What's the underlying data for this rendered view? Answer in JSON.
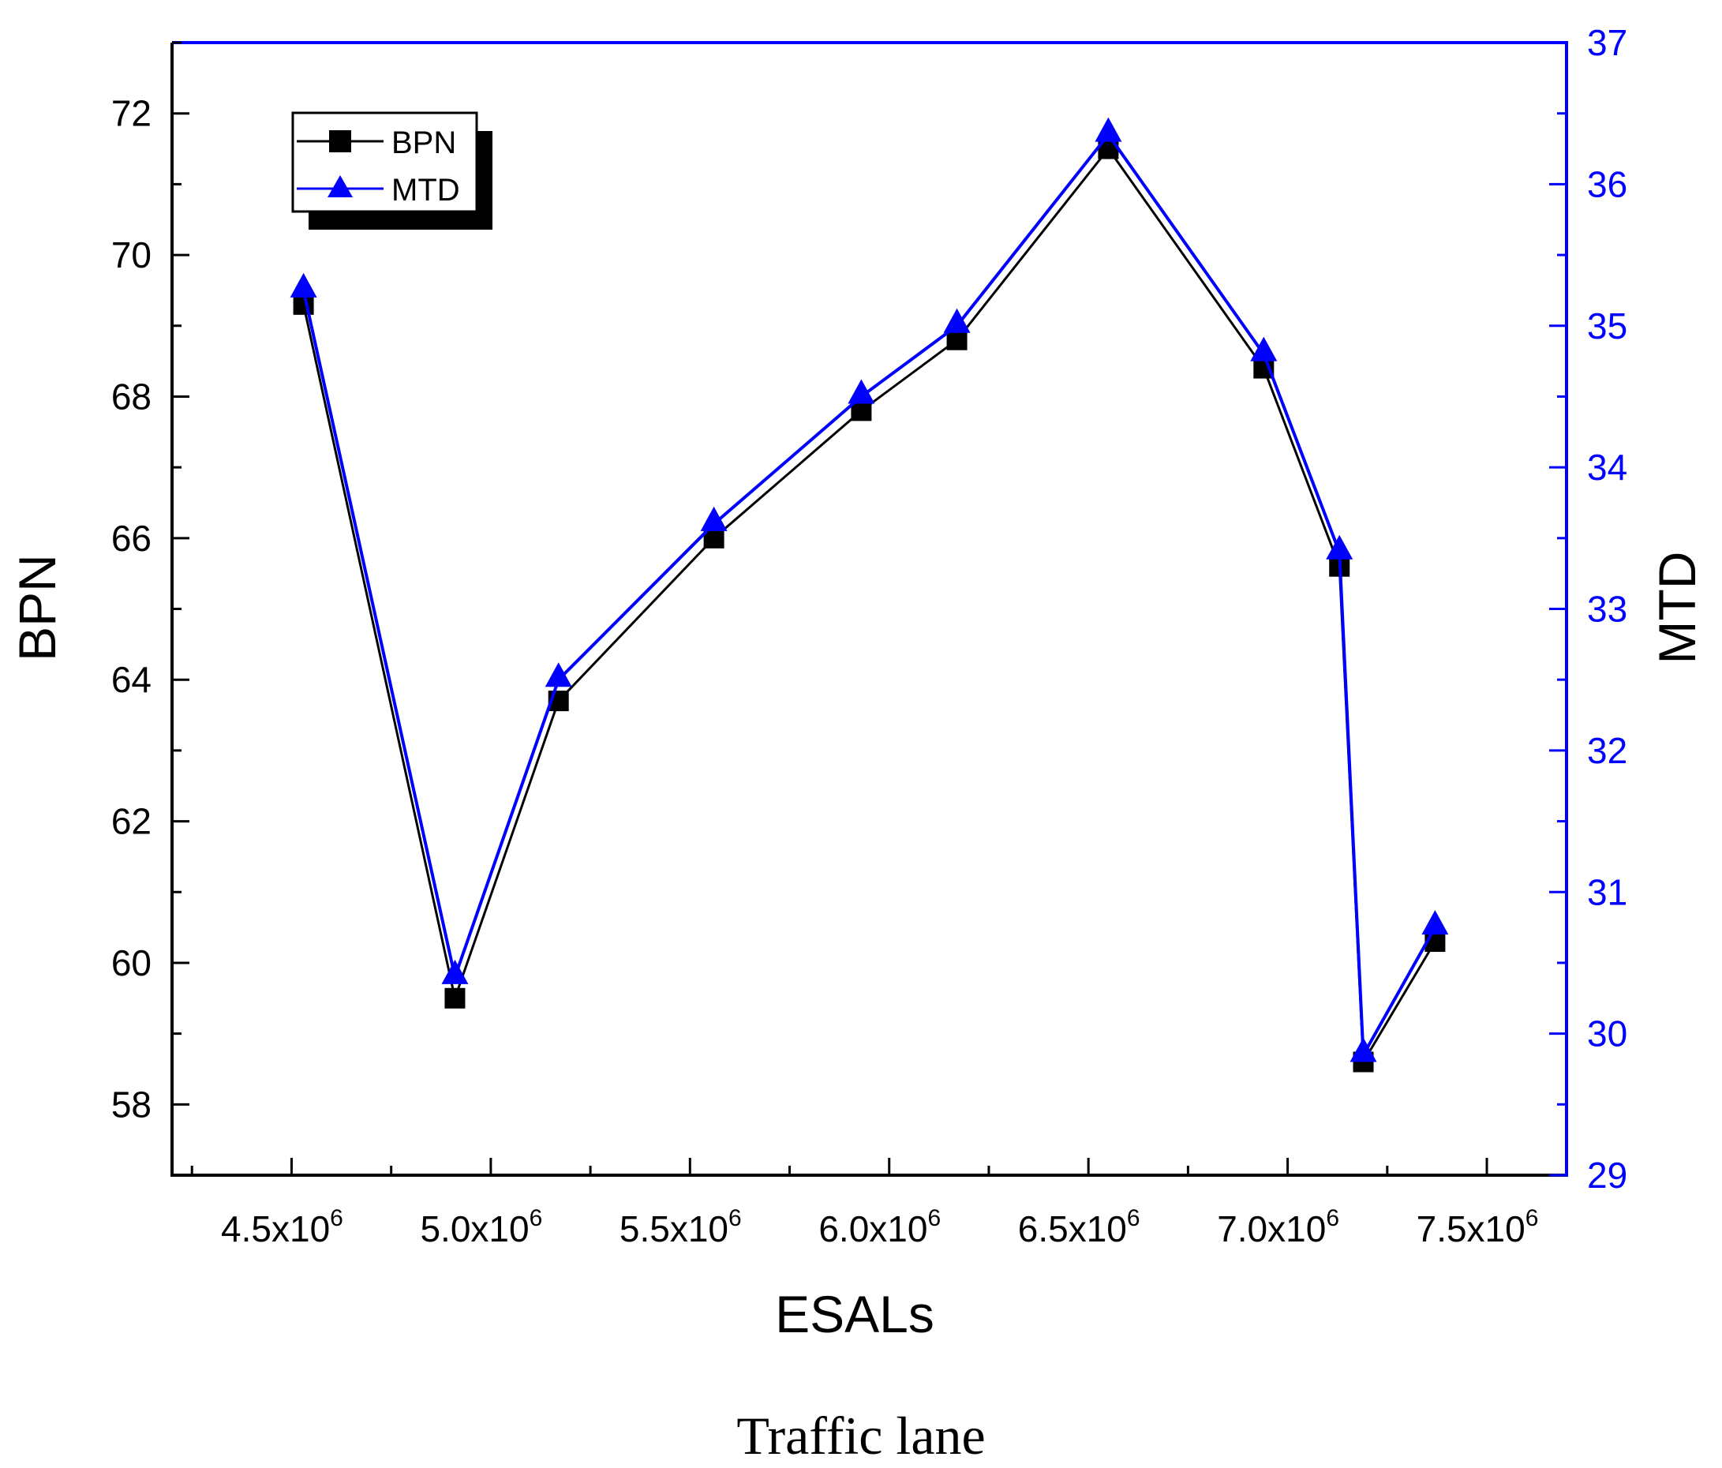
{
  "caption": "Traffic lane",
  "colors": {
    "left_axis": "#000000",
    "right_axis": "#0000ff",
    "bpn_series": "#000000",
    "mtd_series": "#0000ff"
  },
  "chart_data": {
    "type": "line",
    "xlabel": "ESALs",
    "ylabel": "BPN",
    "y2label": "MTD",
    "xlim": [
      4200000,
      7700000
    ],
    "ylim": [
      57,
      73
    ],
    "y2lim": [
      29,
      37
    ],
    "x_ticks": [
      {
        "value": 4500000,
        "mantissa": "4.5x10",
        "exp": "6"
      },
      {
        "value": 5000000,
        "mantissa": "5.0x10",
        "exp": "6"
      },
      {
        "value": 5500000,
        "mantissa": "5.5x10",
        "exp": "6"
      },
      {
        "value": 6000000,
        "mantissa": "6.0x10",
        "exp": "6"
      },
      {
        "value": 6500000,
        "mantissa": "6.5x10",
        "exp": "6"
      },
      {
        "value": 7000000,
        "mantissa": "7.0x10",
        "exp": "6"
      },
      {
        "value": 7500000,
        "mantissa": "7.5x10",
        "exp": "6"
      }
    ],
    "y_ticks": [
      58,
      60,
      62,
      64,
      66,
      68,
      70,
      72
    ],
    "y2_ticks": [
      29,
      30,
      31,
      32,
      33,
      34,
      35,
      36,
      37
    ],
    "grid": false,
    "legend_position": "top-left",
    "series": [
      {
        "name": "BPN",
        "axis": "left",
        "marker": "square",
        "x": [
          4530000,
          4910000,
          5170000,
          5560000,
          5930000,
          6170000,
          6550000,
          6940000,
          7130000,
          7190000,
          7370000
        ],
        "values": [
          69.3,
          59.5,
          63.7,
          66.0,
          67.8,
          68.8,
          71.5,
          68.4,
          65.6,
          58.6,
          60.3
        ]
      },
      {
        "name": "MTD",
        "axis": "right",
        "marker": "triangle",
        "x": [
          4530000,
          4910000,
          5170000,
          5560000,
          5930000,
          6170000,
          6550000,
          6940000,
          7130000,
          7190000,
          7370000
        ],
        "values": [
          35.25,
          30.4,
          32.5,
          33.6,
          34.5,
          35.0,
          36.35,
          34.8,
          33.4,
          29.85,
          30.75
        ]
      }
    ]
  }
}
